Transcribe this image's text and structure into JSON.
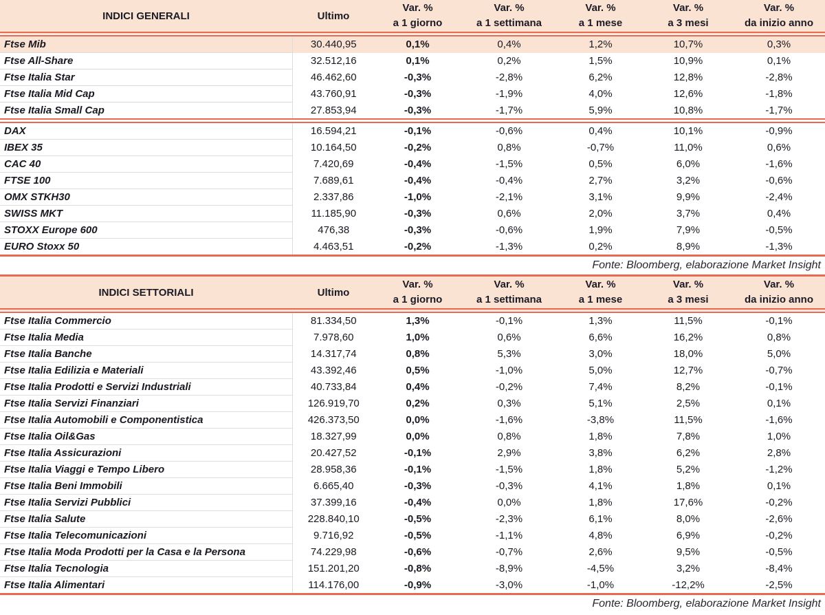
{
  "colors": {
    "accent_rule": "#E96850",
    "header_bg": "#FBE3D3",
    "highlight_row_bg": "#FBE3D3",
    "row_separator": "#DCDCDC",
    "text": "#191922"
  },
  "header": {
    "ultimo": "Ultimo",
    "var_label": "Var. %",
    "periods": [
      "a 1 giorno",
      "a 1 settimana",
      "a 1 mese",
      "a 3 mesi",
      "da inizio anno"
    ]
  },
  "source_note": "Fonte: Bloomberg, elaborazione Market Insight",
  "tables": [
    {
      "title": "INDICI GENERALI",
      "body_name": "general-indices-body",
      "highlight_rows": [
        0
      ],
      "group_starts": [
        5
      ],
      "rows": [
        [
          "Ftse Mib",
          "30.440,95",
          "0,1%",
          "0,4%",
          "1,2%",
          "10,7%",
          "0,3%"
        ],
        [
          "Ftse All-Share",
          "32.512,16",
          "0,1%",
          "0,2%",
          "1,5%",
          "10,9%",
          "0,1%"
        ],
        [
          "Ftse Italia Star",
          "46.462,60",
          "-0,3%",
          "-2,8%",
          "6,2%",
          "12,8%",
          "-2,8%"
        ],
        [
          "Ftse Italia Mid Cap",
          "43.760,91",
          "-0,3%",
          "-1,9%",
          "4,0%",
          "12,6%",
          "-1,8%"
        ],
        [
          "Ftse Italia Small Cap",
          "27.853,94",
          "-0,3%",
          "-1,7%",
          "5,9%",
          "10,8%",
          "-1,7%"
        ],
        [
          "DAX",
          "16.594,21",
          "-0,1%",
          "-0,6%",
          "0,4%",
          "10,1%",
          "-0,9%"
        ],
        [
          "IBEX 35",
          "10.164,50",
          "-0,2%",
          "0,8%",
          "-0,7%",
          "11,0%",
          "0,6%"
        ],
        [
          "CAC 40",
          "7.420,69",
          "-0,4%",
          "-1,5%",
          "0,5%",
          "6,0%",
          "-1,6%"
        ],
        [
          "FTSE 100",
          "7.689,61",
          "-0,4%",
          "-0,4%",
          "2,7%",
          "3,2%",
          "-0,6%"
        ],
        [
          "OMX STKH30",
          "2.337,86",
          "-1,0%",
          "-2,1%",
          "3,1%",
          "9,9%",
          "-2,4%"
        ],
        [
          "SWISS MKT",
          "11.185,90",
          "-0,3%",
          "0,6%",
          "2,0%",
          "3,7%",
          "0,4%"
        ],
        [
          "STOXX Europe 600",
          "476,38",
          "-0,3%",
          "-0,6%",
          "1,9%",
          "7,9%",
          "-0,5%"
        ],
        [
          "EURO Stoxx 50",
          "4.463,51",
          "-0,2%",
          "-1,3%",
          "0,2%",
          "8,9%",
          "-1,3%"
        ]
      ]
    },
    {
      "title": "INDICI SETTORIALI",
      "body_name": "sector-indices-body",
      "highlight_rows": [],
      "group_starts": [],
      "rows": [
        [
          "Ftse Italia Commercio",
          "81.334,50",
          "1,3%",
          "-0,1%",
          "1,3%",
          "11,5%",
          "-0,1%"
        ],
        [
          "Ftse Italia Media",
          "7.978,60",
          "1,0%",
          "0,6%",
          "6,6%",
          "16,2%",
          "0,8%"
        ],
        [
          "Ftse Italia Banche",
          "14.317,74",
          "0,8%",
          "5,3%",
          "3,0%",
          "18,0%",
          "5,0%"
        ],
        [
          "Ftse Italia Edilizia e Materiali",
          "43.392,46",
          "0,5%",
          "-1,0%",
          "5,0%",
          "12,7%",
          "-0,7%"
        ],
        [
          "Ftse Italia Prodotti e Servizi Industriali",
          "40.733,84",
          "0,4%",
          "-0,2%",
          "7,4%",
          "8,2%",
          "-0,1%"
        ],
        [
          "Ftse Italia Servizi Finanziari",
          "126.919,70",
          "0,2%",
          "0,3%",
          "5,1%",
          "2,5%",
          "0,1%"
        ],
        [
          "Ftse Italia Automobili e Componentistica",
          "426.373,50",
          "0,0%",
          "-1,6%",
          "-3,8%",
          "11,5%",
          "-1,6%"
        ],
        [
          "Ftse Italia Oil&Gas",
          "18.327,99",
          "0,0%",
          "0,8%",
          "1,8%",
          "7,8%",
          "1,0%"
        ],
        [
          "Ftse Italia Assicurazioni",
          "20.427,52",
          "-0,1%",
          "2,9%",
          "3,8%",
          "6,2%",
          "2,8%"
        ],
        [
          "Ftse Italia Viaggi e Tempo Libero",
          "28.958,36",
          "-0,1%",
          "-1,5%",
          "1,8%",
          "5,2%",
          "-1,2%"
        ],
        [
          "Ftse Italia Beni Immobili",
          "6.665,40",
          "-0,3%",
          "-0,3%",
          "4,1%",
          "1,8%",
          "0,1%"
        ],
        [
          "Ftse Italia Servizi Pubblici",
          "37.399,16",
          "-0,4%",
          "0,0%",
          "1,8%",
          "17,6%",
          "-0,2%"
        ],
        [
          "Ftse Italia Salute",
          "228.840,10",
          "-0,5%",
          "-2,3%",
          "6,1%",
          "8,0%",
          "-2,6%"
        ],
        [
          "Ftse Italia Telecomunicazioni",
          "9.716,92",
          "-0,5%",
          "-1,1%",
          "4,8%",
          "6,9%",
          "-0,2%"
        ],
        [
          "Ftse Italia Moda Prodotti per la Casa e la Persona",
          "74.229,98",
          "-0,6%",
          "-0,7%",
          "2,6%",
          "9,5%",
          "-0,5%"
        ],
        [
          "Ftse Italia Tecnologia",
          "151.201,20",
          "-0,8%",
          "-8,9%",
          "-4,5%",
          "3,2%",
          "-8,4%"
        ],
        [
          "Ftse Italia Alimentari",
          "114.176,00",
          "-0,9%",
          "-3,0%",
          "-1,0%",
          "-12,2%",
          "-2,5%"
        ]
      ]
    }
  ]
}
